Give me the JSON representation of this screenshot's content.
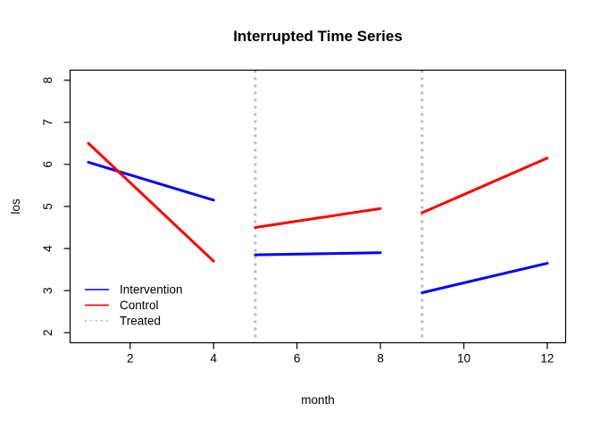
{
  "figure": {
    "background": "#ffffff",
    "frame_color": "#000000"
  },
  "chart_data": {
    "type": "line",
    "title": "Interrupted Time Series",
    "xlabel": "month",
    "ylabel": "los",
    "xlim": [
      0.56,
      12.44
    ],
    "ylim": [
      1.76,
      8.24
    ],
    "x_ticks": [
      2,
      4,
      6,
      8,
      10,
      12
    ],
    "y_ticks": [
      2,
      3,
      4,
      5,
      6,
      7,
      8
    ],
    "grid": false,
    "box": true,
    "legend": {
      "position": "bottom-left",
      "entries": [
        {
          "label": "Intervention",
          "color": "#0000FF",
          "line_style": "solid"
        },
        {
          "label": "Control",
          "color": "#FF0000",
          "line_style": "solid"
        },
        {
          "label": "Treated",
          "color": "#BEBEBE",
          "line_style": "dotted"
        }
      ]
    },
    "series": [
      {
        "name": "Intervention",
        "color": "#0000FF",
        "line_style": "solid",
        "line_width": 3,
        "segments": [
          [
            [
              1,
              6.05
            ],
            [
              4,
              5.15
            ]
          ],
          [
            [
              5,
              3.85
            ],
            [
              8,
              3.9
            ]
          ],
          [
            [
              9,
              2.95
            ],
            [
              12,
              3.65
            ]
          ]
        ]
      },
      {
        "name": "Control",
        "color": "#FF0000",
        "line_style": "solid",
        "line_width": 3,
        "segments": [
          [
            [
              1,
              6.5
            ],
            [
              4,
              3.7
            ]
          ],
          [
            [
              5,
              4.5
            ],
            [
              8,
              4.95
            ]
          ],
          [
            [
              9,
              4.85
            ],
            [
              12,
              6.15
            ]
          ]
        ]
      },
      {
        "name": "Treated",
        "color": "#BEBEBE",
        "line_style": "dotted",
        "line_width": 3,
        "vlines": [
          5,
          9
        ]
      }
    ]
  }
}
